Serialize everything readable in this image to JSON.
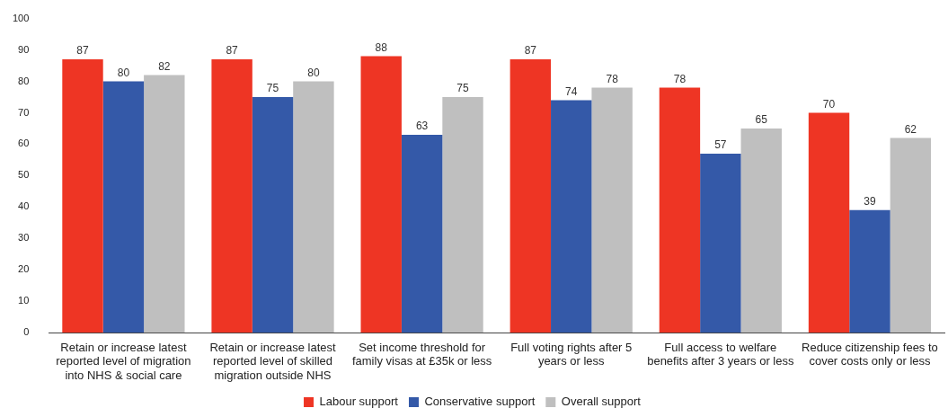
{
  "chart_data": {
    "type": "bar",
    "categories": [
      "Retain or increase latest reported level of migration into NHS & social care",
      "Retain or increase latest reported level of skilled migration outside NHS",
      "Set income threshold for family visas at £35k or less",
      "Full voting rights after 5 years or less",
      "Full access to welfare benefits after 3 years or less",
      "Reduce citizenship fees to cover costs only or less"
    ],
    "series": [
      {
        "name": "Labour support",
        "color": "#ee3524",
        "values": [
          87,
          87,
          88,
          87,
          78,
          70
        ]
      },
      {
        "name": "Conservative support",
        "color": "#3459a8",
        "values": [
          80,
          75,
          63,
          74,
          57,
          39
        ]
      },
      {
        "name": "Overall support",
        "color": "#bfbfbf",
        "values": [
          82,
          80,
          75,
          78,
          65,
          62
        ]
      }
    ],
    "ylim": [
      0,
      100
    ],
    "yticks": [
      0,
      10,
      20,
      30,
      40,
      50,
      60,
      70,
      80,
      90,
      100
    ],
    "grid": false,
    "legend": "bottom",
    "data_labels": true
  }
}
